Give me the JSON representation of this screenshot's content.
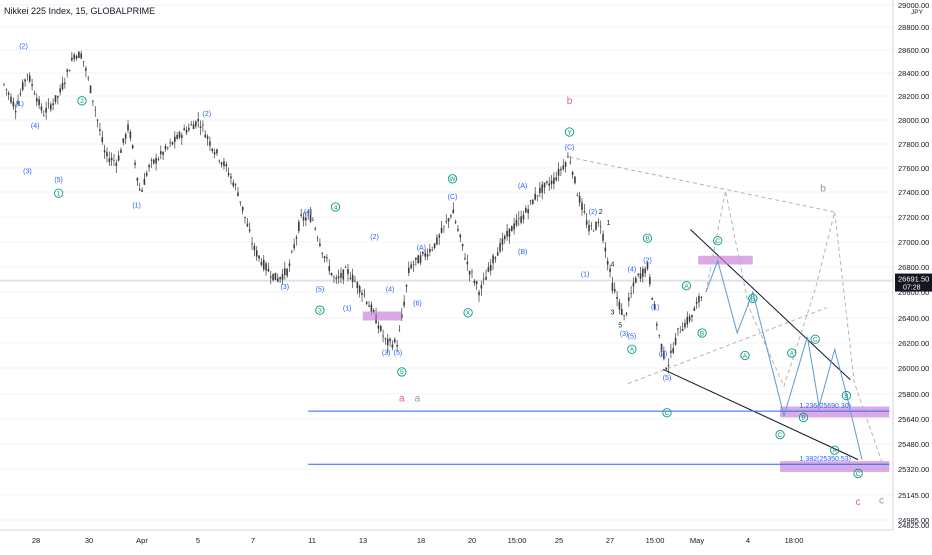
{
  "header": {
    "title": "Nikkei 225 Index, 15, GLOBALPRIME"
  },
  "colors": {
    "background": "#ffffff",
    "candle": "#3a3a3a",
    "grid": "#f0f3fa",
    "blue_line": "#2962ff",
    "projection": "#5b9bd5",
    "wave_blue": "#2962ff",
    "wave_green": "#089981",
    "wave_pink": "#e0637c",
    "wave_gray": "#9598a1",
    "zone": "#c77dd6",
    "price_badge": "#131722"
  },
  "chart_data": {
    "type": "line",
    "title": "Nikkei 225 Index, 15, GLOBALPRIME",
    "currency": "JPY",
    "y_ticks": [
      "29000.00",
      "28800.00",
      "28600.00",
      "28400.00",
      "28200.00",
      "28000.00",
      "27800.00",
      "27600.00",
      "27400.00",
      "27200.00",
      "27000.00",
      "26800.00",
      "26600.00",
      "26400.00",
      "26200.00",
      "26000.00",
      "25800.00",
      "25640.00",
      "25480.00",
      "25320.00",
      "25145.00",
      "24985.00",
      "24825.00"
    ],
    "x_ticks": [
      "28",
      "30",
      "Apr",
      "5",
      "7",
      "11",
      "13",
      "18",
      "20",
      "15:00",
      "25",
      "27",
      "15:00",
      "May",
      "4",
      "18:00"
    ],
    "current_price": {
      "price": "26691.50",
      "time": "07:28"
    },
    "fib_levels": [
      {
        "label": "1.236(25690.30)",
        "value": 25690.3
      },
      {
        "label": "1.382(25350.53)",
        "value": 25350.53
      }
    ],
    "wave_labels": [
      {
        "text": "(2)",
        "color": "blue",
        "x": 0.5,
        "y": 28640
      },
      {
        "text": "(1)",
        "color": "blue",
        "x": 0.4,
        "y": 28140
      },
      {
        "text": "2",
        "color": "green",
        "x": 2.0,
        "y": 28160
      },
      {
        "text": "(4)",
        "color": "blue",
        "x": 0.8,
        "y": 27960
      },
      {
        "text": "(3)",
        "color": "blue",
        "x": 0.6,
        "y": 27580
      },
      {
        "text": "(5)",
        "color": "blue",
        "x": 1.4,
        "y": 27510
      },
      {
        "text": "1",
        "color": "green",
        "x": 1.4,
        "y": 27390
      },
      {
        "text": "(1)",
        "color": "blue",
        "x": 3.4,
        "y": 27300
      },
      {
        "text": "(2)",
        "color": "blue",
        "x": 5.2,
        "y": 28060
      },
      {
        "text": "(3)",
        "color": "blue",
        "x": 7.2,
        "y": 26650
      },
      {
        "text": "(4)",
        "color": "blue",
        "x": 7.8,
        "y": 27250
      },
      {
        "text": "(5)",
        "color": "blue",
        "x": 8.1,
        "y": 26630
      },
      {
        "text": "4",
        "color": "green",
        "x": 8.5,
        "y": 27280
      },
      {
        "text": "(1)",
        "color": "blue",
        "x": 8.8,
        "y": 26480
      },
      {
        "text": "3",
        "color": "green",
        "x": 8.1,
        "y": 26460
      },
      {
        "text": "(2)",
        "color": "blue",
        "x": 9.5,
        "y": 27050
      },
      {
        "text": "(4)",
        "color": "blue",
        "x": 9.9,
        "y": 26630
      },
      {
        "text": "(3)",
        "color": "blue",
        "x": 9.8,
        "y": 26130
      },
      {
        "text": "(5)",
        "color": "blue",
        "x": 10.1,
        "y": 26130
      },
      {
        "text": "5",
        "color": "green",
        "x": 10.2,
        "y": 25970
      },
      {
        "text": "a",
        "color": "pink",
        "x": 10.2,
        "y": 25770
      },
      {
        "text": "a",
        "color": "gray",
        "x": 10.6,
        "y": 25770
      },
      {
        "text": "(6)",
        "color": "blue",
        "x": 10.6,
        "y": 26520
      },
      {
        "text": "(A)",
        "color": "blue",
        "x": 10.7,
        "y": 26960
      },
      {
        "text": "W",
        "color": "green",
        "x": 11.5,
        "y": 27510
      },
      {
        "text": "(C)",
        "color": "blue",
        "x": 11.5,
        "y": 27370
      },
      {
        "text": "X",
        "color": "green",
        "x": 11.9,
        "y": 26440
      },
      {
        "text": "(B)",
        "color": "blue",
        "x": 13.3,
        "y": 26930
      },
      {
        "text": "(A)",
        "color": "blue",
        "x": 13.3,
        "y": 27460
      },
      {
        "text": "b",
        "color": "pink",
        "x": 14.5,
        "y": 28160
      },
      {
        "text": "Y",
        "color": "green",
        "x": 14.5,
        "y": 27900
      },
      {
        "text": "(C)",
        "color": "blue",
        "x": 14.5,
        "y": 27780
      },
      {
        "text": "(2)",
        "color": "blue",
        "x": 15.1,
        "y": 27250
      },
      {
        "text": "2",
        "color": "black",
        "x": 15.3,
        "y": 27250
      },
      {
        "text": "1",
        "color": "black",
        "x": 15.5,
        "y": 27160
      },
      {
        "text": "(1)",
        "color": "blue",
        "x": 14.9,
        "y": 26750
      },
      {
        "text": "4",
        "color": "black",
        "x": 15.6,
        "y": 26830
      },
      {
        "text": "(4)",
        "color": "blue",
        "x": 16.1,
        "y": 26790
      },
      {
        "text": "3",
        "color": "black",
        "x": 15.6,
        "y": 26450
      },
      {
        "text": "5",
        "color": "black",
        "x": 15.8,
        "y": 26350
      },
      {
        "text": "(3)",
        "color": "blue",
        "x": 15.9,
        "y": 26280
      },
      {
        "text": "(5)",
        "color": "blue",
        "x": 16.1,
        "y": 26260
      },
      {
        "text": "A",
        "color": "green",
        "x": 16.1,
        "y": 26150
      },
      {
        "text": "B",
        "color": "green",
        "x": 16.5,
        "y": 27030
      },
      {
        "text": "(2)",
        "color": "blue",
        "x": 16.5,
        "y": 26860
      },
      {
        "text": "(1)",
        "color": "blue",
        "x": 16.7,
        "y": 26490
      },
      {
        "text": "(3)",
        "color": "blue",
        "x": 16.9,
        "y": 26120
      },
      {
        "text": "(5)",
        "color": "blue",
        "x": 17.0,
        "y": 25930
      },
      {
        "text": "C",
        "color": "green",
        "x": 17.0,
        "y": 25680
      },
      {
        "text": "A",
        "color": "green",
        "x": 17.5,
        "y": 26650
      },
      {
        "text": "B",
        "color": "green",
        "x": 17.9,
        "y": 26280
      },
      {
        "text": "C",
        "color": "green",
        "x": 18.3,
        "y": 27010
      },
      {
        "text": "B",
        "color": "green",
        "x": 19.2,
        "y": 26550
      },
      {
        "text": "A",
        "color": "green",
        "x": 19.0,
        "y": 26100
      },
      {
        "text": "C",
        "color": "green",
        "x": 19.9,
        "y": 25540
      },
      {
        "text": "B",
        "color": "green",
        "x": 20.5,
        "y": 25650
      },
      {
        "text": "A",
        "color": "green",
        "x": 20.2,
        "y": 26120
      },
      {
        "text": "C",
        "color": "green",
        "x": 20.8,
        "y": 26230
      },
      {
        "text": "B",
        "color": "green",
        "x": 21.6,
        "y": 25790
      },
      {
        "text": "A",
        "color": "green",
        "x": 21.3,
        "y": 25440
      },
      {
        "text": "C",
        "color": "green",
        "x": 21.9,
        "y": 25290
      },
      {
        "text": "b",
        "color": "gray",
        "x": 21.0,
        "y": 27430
      },
      {
        "text": "c",
        "color": "pink",
        "x": 21.9,
        "y": 25100
      },
      {
        "text": "c",
        "color": "gray",
        "x": 22.5,
        "y": 25110
      }
    ],
    "zones": [
      {
        "x0": 9.2,
        "x1": 10.2,
        "y0": 26380,
        "y1": 26450
      },
      {
        "x0": 17.8,
        "x1": 19.2,
        "y0": 26820,
        "y1": 26890
      },
      {
        "x0": 19.9,
        "x1": 22.7,
        "y0": 25650,
        "y1": 25720
      },
      {
        "x0": 19.9,
        "x1": 22.7,
        "y0": 25300,
        "y1": 25370
      }
    ],
    "channel_lines": [
      {
        "x0": 14.5,
        "y0": 27690,
        "x1": 21.3,
        "y1": 27240,
        "style": "dashed-gray"
      },
      {
        "x0": 16.0,
        "y0": 25880,
        "x1": 21.1,
        "y1": 26480,
        "style": "dashed-gray"
      },
      {
        "x0": 17.6,
        "y0": 27100,
        "x1": 21.7,
        "y1": 25910,
        "style": "solid-black"
      },
      {
        "x0": 16.9,
        "y0": 25990,
        "x1": 21.9,
        "y1": 25380,
        "style": "solid-black"
      }
    ],
    "projection_blue": [
      [
        18.0,
        26600
      ],
      [
        18.3,
        26850
      ],
      [
        18.8,
        26280
      ],
      [
        19.2,
        26600
      ],
      [
        20.0,
        25660
      ],
      [
        20.6,
        26250
      ],
      [
        20.9,
        25720
      ],
      [
        21.3,
        26150
      ],
      [
        21.6,
        25800
      ],
      [
        22.0,
        25380
      ]
    ],
    "projection_gray": [
      [
        18.0,
        26600
      ],
      [
        18.5,
        27410
      ],
      [
        19.1,
        26480
      ],
      [
        20.0,
        25860
      ],
      [
        20.8,
        26620
      ],
      [
        21.3,
        27240
      ],
      [
        21.8,
        25890
      ],
      [
        22.6,
        25300
      ]
    ]
  }
}
